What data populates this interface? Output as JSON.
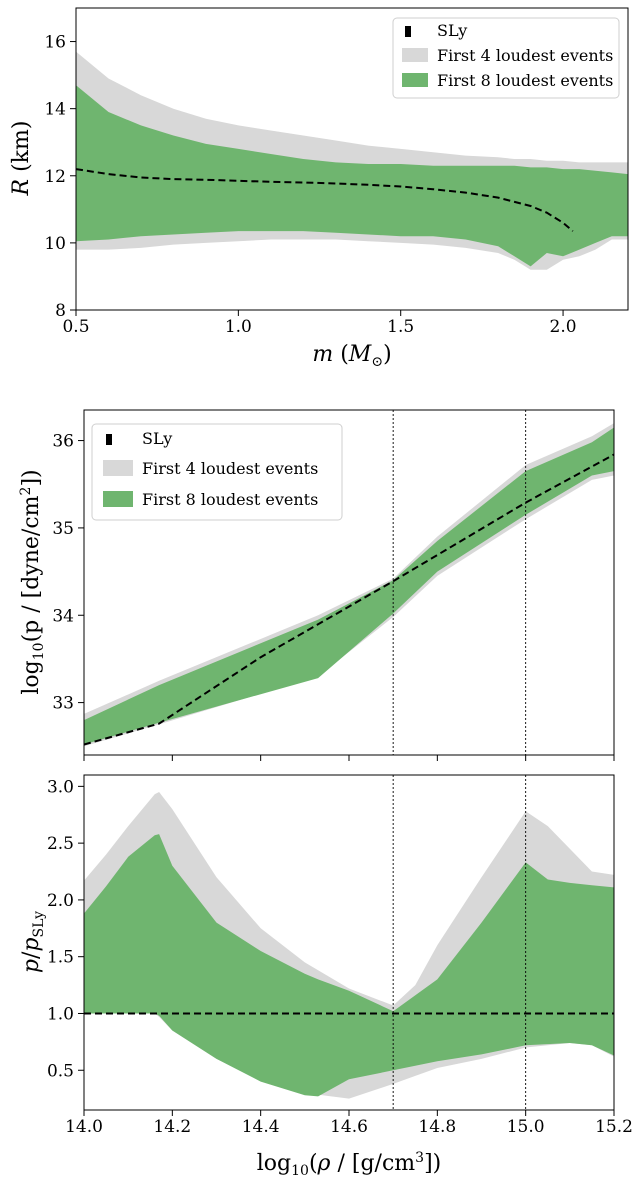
{
  "chart_data": [
    {
      "type": "area",
      "xlabel": "m (M⊙)",
      "ylabel": "R (km)",
      "xlim": [
        0.5,
        2.2
      ],
      "ylim": [
        8,
        17
      ],
      "xticks": [
        "0.5",
        "1.0",
        "1.5",
        "2.0"
      ],
      "yticks": [
        "8",
        "10",
        "12",
        "14",
        "16"
      ],
      "legend": {
        "placement": "top-right",
        "entries": [
          "SLy",
          "First 4 loudest events",
          "First 8 loudest events"
        ]
      },
      "colors": {
        "outer": "#d8d8d8",
        "inner": "#6fb56f",
        "line": "#000000"
      },
      "series": [
        {
          "name": "First 4 loudest events",
          "x": [
            0.5,
            0.6,
            0.7,
            0.8,
            0.9,
            1.0,
            1.1,
            1.2,
            1.3,
            1.4,
            1.5,
            1.6,
            1.7,
            1.8,
            1.85,
            1.9,
            1.95,
            2.0,
            2.05,
            2.1,
            2.15,
            2.2
          ],
          "upper": [
            15.7,
            14.9,
            14.4,
            14.0,
            13.7,
            13.5,
            13.35,
            13.2,
            13.05,
            12.9,
            12.8,
            12.7,
            12.6,
            12.55,
            12.5,
            12.5,
            12.45,
            12.45,
            12.4,
            12.4,
            12.4,
            12.4
          ],
          "lower": [
            9.8,
            9.8,
            9.85,
            9.95,
            10.0,
            10.05,
            10.1,
            10.1,
            10.1,
            10.05,
            10.0,
            9.95,
            9.85,
            9.7,
            9.5,
            9.2,
            9.2,
            9.5,
            9.6,
            9.8,
            10.1,
            10.1
          ]
        },
        {
          "name": "First 8 loudest events",
          "x": [
            0.5,
            0.6,
            0.7,
            0.8,
            0.9,
            1.0,
            1.1,
            1.2,
            1.3,
            1.4,
            1.5,
            1.6,
            1.7,
            1.8,
            1.85,
            1.9,
            1.95,
            2.0,
            2.05,
            2.1,
            2.15,
            2.2
          ],
          "upper": [
            14.7,
            13.9,
            13.5,
            13.2,
            12.95,
            12.8,
            12.65,
            12.5,
            12.4,
            12.35,
            12.35,
            12.3,
            12.3,
            12.3,
            12.3,
            12.25,
            12.25,
            12.2,
            12.2,
            12.15,
            12.1,
            12.05
          ],
          "lower": [
            10.05,
            10.1,
            10.2,
            10.25,
            10.3,
            10.35,
            10.35,
            10.35,
            10.3,
            10.25,
            10.2,
            10.2,
            10.1,
            9.9,
            9.6,
            9.3,
            9.7,
            9.6,
            9.8,
            10.0,
            10.2,
            10.2
          ]
        },
        {
          "name": "SLy",
          "x": [
            0.5,
            0.6,
            0.7,
            0.8,
            0.9,
            1.0,
            1.1,
            1.2,
            1.3,
            1.4,
            1.5,
            1.6,
            1.7,
            1.8,
            1.9,
            1.95,
            2.0,
            2.03
          ],
          "y": [
            12.2,
            12.05,
            11.95,
            11.9,
            11.88,
            11.85,
            11.82,
            11.8,
            11.77,
            11.73,
            11.68,
            11.6,
            11.5,
            11.35,
            11.1,
            10.9,
            10.6,
            10.35
          ]
        }
      ]
    },
    {
      "type": "area",
      "xlabel": "",
      "ylabel": "log10(p / [dyne/cm2])",
      "xlim": [
        14.0,
        15.2
      ],
      "ylim": [
        32.4,
        36.35
      ],
      "yticks": [
        "33",
        "34",
        "35",
        "36"
      ],
      "vlines": [
        14.7,
        15.0
      ],
      "legend": {
        "placement": "top-left",
        "entries": [
          "SLy",
          "First 4 loudest events",
          "First 8 loudest events"
        ]
      },
      "colors": {
        "outer": "#d8d8d8",
        "inner": "#6fb56f",
        "line": "#000000"
      },
      "series": [
        {
          "name": "First 4 loudest events",
          "x": [
            14.0,
            14.17,
            14.53,
            14.7,
            14.8,
            15.0,
            15.15,
            15.2
          ],
          "upper": [
            32.87,
            33.25,
            34.0,
            34.42,
            34.9,
            35.72,
            36.05,
            36.2
          ],
          "lower": [
            32.5,
            32.75,
            33.3,
            33.98,
            34.45,
            35.1,
            35.55,
            35.6
          ]
        },
        {
          "name": "First 8 loudest events",
          "x": [
            14.0,
            14.17,
            14.53,
            14.7,
            14.8,
            15.0,
            15.15,
            15.2
          ],
          "upper": [
            32.8,
            33.2,
            33.95,
            34.4,
            34.85,
            35.65,
            35.98,
            36.15
          ],
          "lower": [
            32.52,
            32.77,
            33.28,
            34.02,
            34.5,
            35.15,
            35.6,
            35.65
          ]
        },
        {
          "name": "SLy",
          "x": [
            14.0,
            14.17,
            14.4,
            14.7,
            15.0,
            15.2
          ],
          "y": [
            32.52,
            32.76,
            33.52,
            34.39,
            35.29,
            35.84
          ]
        }
      ]
    },
    {
      "type": "area",
      "xlabel": "log10(ρ / [g/cm3])",
      "ylabel": "p/pSLy",
      "xlim": [
        14.0,
        15.2
      ],
      "ylim": [
        0.15,
        3.1
      ],
      "xticks": [
        "14.0",
        "14.2",
        "14.4",
        "14.6",
        "14.8",
        "15.0",
        "15.2"
      ],
      "yticks": [
        "0.5",
        "1.0",
        "1.5",
        "2.0",
        "2.5",
        "3.0"
      ],
      "vlines": [
        14.7,
        15.0
      ],
      "colors": {
        "outer": "#d8d8d8",
        "inner": "#6fb56f",
        "line": "#000000"
      },
      "series": [
        {
          "name": "First 4 loudest events",
          "x": [
            14.0,
            14.05,
            14.1,
            14.16,
            14.17,
            14.2,
            14.3,
            14.4,
            14.5,
            14.6,
            14.7,
            14.75,
            14.8,
            14.9,
            15.0,
            15.05,
            15.1,
            15.15,
            15.2
          ],
          "upper": [
            2.17,
            2.4,
            2.65,
            2.93,
            2.95,
            2.8,
            2.2,
            1.75,
            1.45,
            1.22,
            1.07,
            1.25,
            1.6,
            2.2,
            2.78,
            2.65,
            2.45,
            2.25,
            2.22
          ],
          "lower": [
            1.0,
            1.0,
            1.0,
            1.0,
            0.97,
            0.85,
            0.6,
            0.42,
            0.3,
            0.25,
            0.38,
            0.45,
            0.52,
            0.6,
            0.7,
            0.72,
            0.74,
            0.72,
            0.62
          ]
        },
        {
          "name": "First 8 loudest events",
          "x": [
            14.0,
            14.05,
            14.1,
            14.16,
            14.17,
            14.2,
            14.3,
            14.4,
            14.5,
            14.53,
            14.6,
            14.7,
            14.8,
            14.9,
            15.0,
            15.05,
            15.1,
            15.15,
            15.2
          ],
          "upper": [
            1.88,
            2.12,
            2.38,
            2.57,
            2.58,
            2.3,
            1.8,
            1.55,
            1.35,
            1.3,
            1.2,
            1.02,
            1.3,
            1.8,
            2.33,
            2.18,
            2.15,
            2.13,
            2.11
          ],
          "lower": [
            1.0,
            1.0,
            1.0,
            1.0,
            0.98,
            0.85,
            0.6,
            0.4,
            0.28,
            0.27,
            0.42,
            0.5,
            0.58,
            0.64,
            0.72,
            0.73,
            0.74,
            0.72,
            0.63
          ]
        },
        {
          "name": "SLy",
          "x": [
            14.0,
            15.2
          ],
          "y": [
            1.0,
            1.0
          ]
        }
      ]
    }
  ]
}
